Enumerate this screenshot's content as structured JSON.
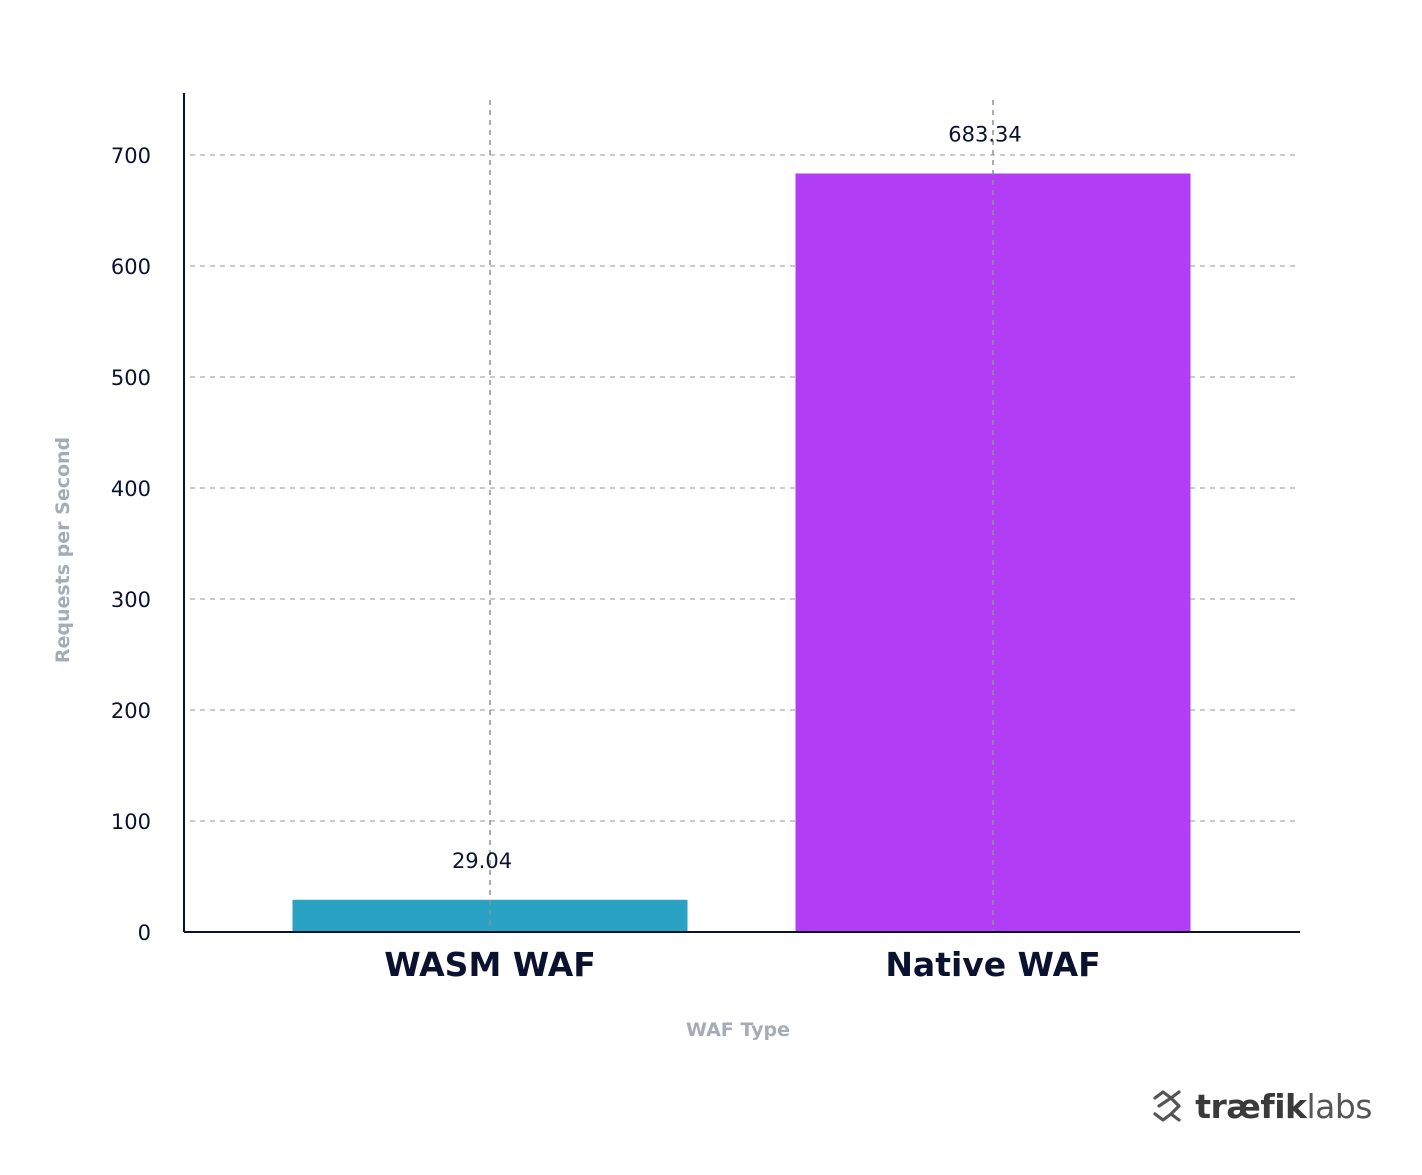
{
  "chart_data": {
    "type": "bar",
    "categories": [
      "WASM WAF",
      "Native WAF"
    ],
    "values": [
      29.04,
      683.34
    ],
    "data_labels": [
      "29.04",
      "683.34"
    ],
    "xlabel": "WAF Type",
    "ylabel": "Requests per Second",
    "ylim": [
      0,
      755
    ],
    "yticks": [
      0,
      100,
      200,
      300,
      400,
      500,
      600,
      700
    ],
    "grid": true,
    "bar_colors": [
      "#29a2c3",
      "#b13ef5"
    ]
  },
  "logo": {
    "brand_strong": "træfik",
    "brand_light": "labs"
  }
}
